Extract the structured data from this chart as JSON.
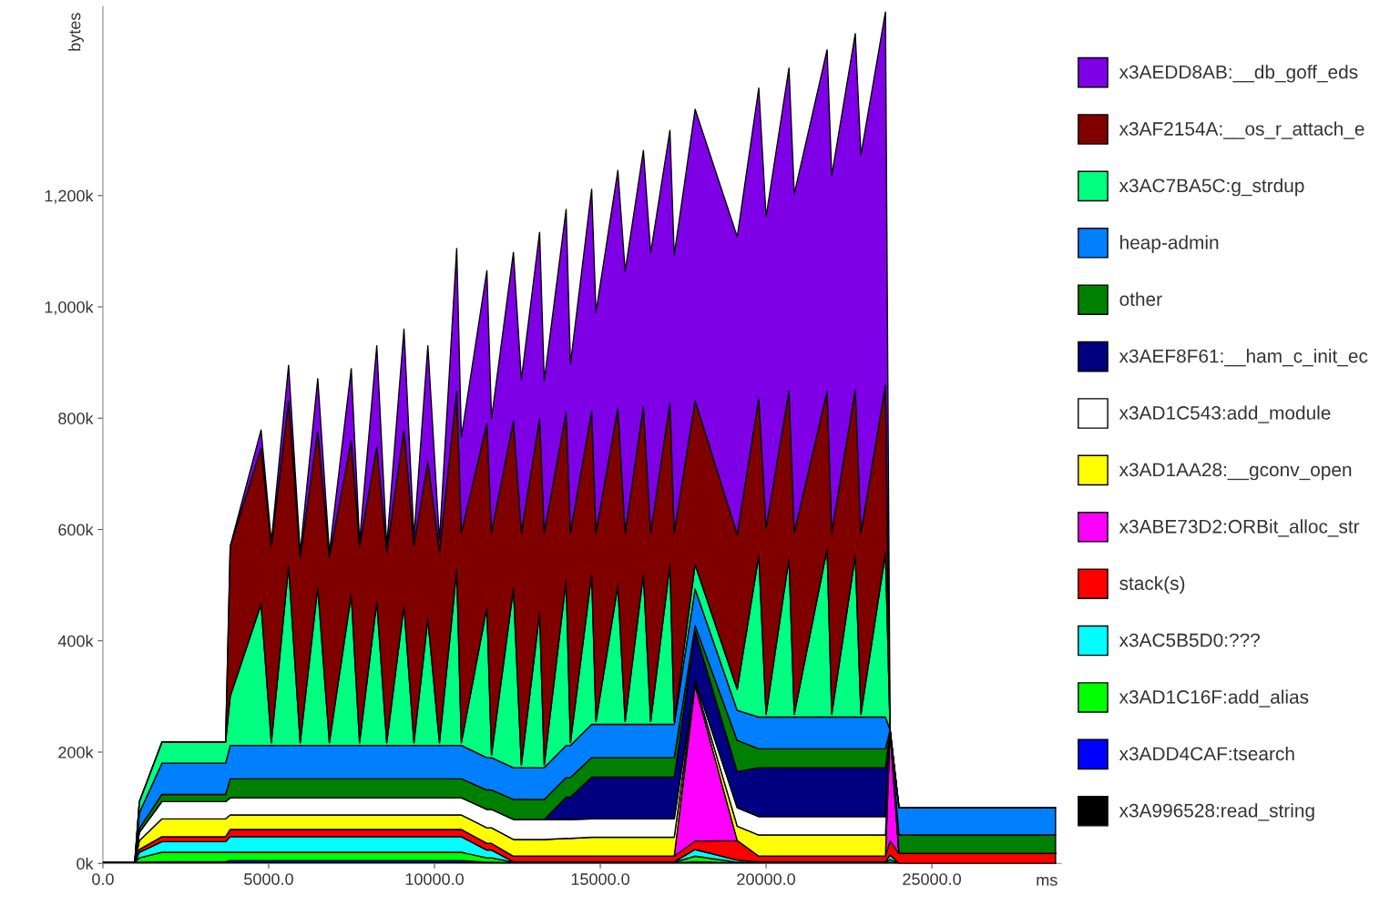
{
  "chart_data": {
    "type": "area",
    "stacked": true,
    "xlabel": "ms",
    "ylabel": "bytes",
    "x": [
      0,
      960,
      1100,
      1780,
      3700,
      3840,
      4770,
      5080,
      5600,
      5950,
      6480,
      6830,
      7490,
      7740,
      8260,
      8560,
      9080,
      9380,
      9800,
      10150,
      10670,
      10810,
      11580,
      11720,
      12380,
      12620,
      13170,
      13310,
      13970,
      14100,
      14740,
      14870,
      15530,
      15750,
      16300,
      16520,
      17100,
      17230,
      17860,
      19130,
      19780,
      20000,
      20690,
      20850,
      21840,
      21980,
      22690,
      22860,
      23600,
      23740,
      24010,
      28730
    ],
    "xlim": [
      0,
      28900
    ],
    "xticks": [
      {
        "value": 0,
        "label": "0.0"
      },
      {
        "value": 5000,
        "label": "5000.0"
      },
      {
        "value": 10000,
        "label": "10000.0"
      },
      {
        "value": 15000,
        "label": "15000.0"
      },
      {
        "value": 20000,
        "label": "20000.0"
      },
      {
        "value": 25000,
        "label": "25000.0"
      }
    ],
    "ylim": [
      0,
      1540
    ],
    "yticks": [
      {
        "value": 0,
        "label": "0k"
      },
      {
        "value": 200,
        "label": "200k"
      },
      {
        "value": 400,
        "label": "400k"
      },
      {
        "value": 600,
        "label": "600k"
      },
      {
        "value": 800,
        "label": "800k"
      },
      {
        "value": 1000,
        "label": "1,000k"
      },
      {
        "value": 1200,
        "label": "1,200k"
      }
    ],
    "legend": "right",
    "grid": false,
    "series": [
      {
        "name": "x3A996528:read_string",
        "color": "#000000",
        "values": [
          2,
          2,
          1,
          1,
          1,
          1,
          1,
          1,
          1,
          1,
          1,
          1,
          1,
          1,
          1,
          1,
          1,
          1,
          1,
          1,
          1,
          1,
          0,
          0,
          0,
          0,
          0,
          0,
          0,
          0,
          0,
          0,
          0,
          0,
          0,
          0,
          0,
          0,
          0,
          0,
          0,
          0,
          0,
          0,
          0,
          0,
          0,
          0,
          0,
          0,
          0,
          0
        ]
      },
      {
        "name": "x3ADD4CAF:tsearch",
        "color": "#0000ff",
        "values": [
          0,
          0,
          1,
          2,
          2,
          4,
          4,
          4,
          4,
          4,
          4,
          4,
          4,
          4,
          4,
          4,
          4,
          4,
          4,
          4,
          4,
          4,
          2,
          2,
          1,
          1,
          1,
          1,
          1,
          1,
          1,
          1,
          1,
          1,
          1,
          1,
          1,
          1,
          3,
          1,
          1,
          1,
          1,
          1,
          1,
          1,
          1,
          1,
          1,
          2,
          0,
          0
        ]
      },
      {
        "name": "x3AD1C16F:add_alias",
        "color": "#00ff00",
        "values": [
          0,
          0,
          8,
          17,
          17,
          15,
          15,
          15,
          15,
          15,
          15,
          15,
          15,
          15,
          15,
          15,
          15,
          15,
          15,
          15,
          15,
          15,
          8,
          8,
          1,
          1,
          1,
          1,
          1,
          1,
          1,
          1,
          1,
          1,
          1,
          1,
          1,
          1,
          10,
          1,
          1,
          1,
          1,
          1,
          1,
          1,
          1,
          1,
          1,
          5,
          0,
          0
        ]
      },
      {
        "name": "x3AC5B5D0:???",
        "color": "#00ffff",
        "values": [
          0,
          0,
          10,
          19,
          19,
          28,
          28,
          28,
          28,
          28,
          28,
          28,
          28,
          28,
          28,
          28,
          28,
          28,
          28,
          28,
          28,
          28,
          14,
          14,
          1,
          1,
          1,
          1,
          1,
          1,
          1,
          1,
          1,
          1,
          1,
          1,
          1,
          1,
          12,
          4,
          1,
          1,
          1,
          1,
          1,
          1,
          1,
          1,
          1,
          8,
          0,
          0
        ]
      },
      {
        "name": "stack(s)",
        "color": "#ff0000",
        "values": [
          0,
          0,
          5,
          9,
          9,
          13,
          13,
          13,
          13,
          13,
          13,
          13,
          13,
          13,
          13,
          13,
          13,
          13,
          13,
          13,
          13,
          13,
          12,
          12,
          10,
          10,
          10,
          10,
          10,
          10,
          10,
          10,
          10,
          10,
          10,
          10,
          10,
          10,
          15,
          35,
          10,
          10,
          10,
          10,
          10,
          10,
          10,
          10,
          10,
          25,
          18,
          18
        ]
      },
      {
        "name": "x3ABE73D2:ORBit_alloc_str",
        "color": "#ff00ff",
        "values": [
          0,
          0,
          0,
          0,
          0,
          0,
          0,
          0,
          0,
          0,
          0,
          0,
          0,
          0,
          0,
          0,
          0,
          0,
          0,
          0,
          0,
          0,
          0,
          0,
          0,
          0,
          0,
          0,
          0,
          0,
          0,
          0,
          0,
          0,
          0,
          0,
          0,
          0,
          280,
          0,
          0,
          0,
          0,
          0,
          0,
          0,
          0,
          0,
          0,
          200,
          0,
          0
        ]
      },
      {
        "name": "x3AD1AA28:__gconv_open",
        "color": "#ffff00",
        "values": [
          0,
          0,
          16,
          32,
          32,
          26,
          26,
          26,
          26,
          26,
          26,
          26,
          26,
          26,
          26,
          26,
          26,
          26,
          26,
          26,
          26,
          26,
          28,
          28,
          30,
          30,
          30,
          30,
          32,
          32,
          34,
          34,
          34,
          34,
          34,
          34,
          34,
          34,
          4,
          26,
          38,
          38,
          38,
          38,
          38,
          38,
          38,
          38,
          38,
          0,
          0,
          0
        ]
      },
      {
        "name": "x3AD1C543:add_module",
        "color": "#ffffff",
        "values": [
          0,
          0,
          15,
          31,
          31,
          31,
          31,
          31,
          31,
          31,
          31,
          31,
          31,
          31,
          31,
          31,
          31,
          31,
          31,
          31,
          31,
          31,
          33,
          33,
          36,
          36,
          36,
          36,
          34,
          34,
          33,
          33,
          33,
          33,
          33,
          33,
          33,
          33,
          5,
          33,
          33,
          33,
          33,
          33,
          33,
          33,
          33,
          33,
          33,
          0,
          0,
          0
        ]
      },
      {
        "name": "x3AEF8F61:__ham_c_init_ec",
        "color": "#000080",
        "values": [
          0,
          0,
          0,
          0,
          0,
          0,
          0,
          0,
          0,
          0,
          0,
          0,
          0,
          0,
          0,
          0,
          0,
          0,
          0,
          0,
          0,
          0,
          0,
          0,
          0,
          0,
          0,
          0,
          40,
          40,
          75,
          75,
          75,
          75,
          75,
          75,
          75,
          75,
          88,
          65,
          88,
          88,
          88,
          88,
          88,
          88,
          88,
          88,
          88,
          0,
          0,
          0
        ]
      },
      {
        "name": "other",
        "color": "#008000",
        "values": [
          0,
          0,
          7,
          13,
          13,
          34,
          34,
          34,
          34,
          34,
          34,
          34,
          34,
          34,
          34,
          34,
          34,
          34,
          34,
          34,
          34,
          34,
          35,
          35,
          36,
          36,
          36,
          36,
          35,
          35,
          35,
          35,
          35,
          35,
          35,
          35,
          35,
          35,
          10,
          56,
          34,
          34,
          34,
          34,
          34,
          34,
          34,
          34,
          34,
          0,
          33,
          33
        ]
      },
      {
        "name": "heap-admin",
        "color": "#0080ff",
        "values": [
          0,
          0,
          28,
          56,
          56,
          60,
          60,
          60,
          60,
          60,
          60,
          60,
          60,
          60,
          60,
          60,
          60,
          60,
          60,
          60,
          60,
          60,
          58,
          58,
          57,
          57,
          57,
          57,
          58,
          58,
          60,
          60,
          60,
          60,
          60,
          60,
          60,
          60,
          66,
          54,
          57,
          57,
          57,
          57,
          57,
          57,
          57,
          57,
          57,
          0,
          49,
          49
        ]
      },
      {
        "name": "x3AC7BA5C:g_strdup",
        "color": "#00ff80",
        "values": [
          0,
          0,
          20,
          38,
          38,
          88,
          254,
          5,
          322,
          5,
          284,
          5,
          271,
          5,
          258,
          5,
          251,
          5,
          227,
          5,
          315,
          5,
          270,
          5,
          322,
          5,
          278,
          5,
          297,
          5,
          270,
          5,
          249,
          5,
          270,
          5,
          287,
          5,
          44,
          38,
          290,
          5,
          285,
          5,
          302,
          5,
          290,
          5,
          295,
          0,
          0,
          0
        ]
      },
      {
        "name": "x3AF2154A:__os_r_attach_e",
        "color": "#800000",
        "values": [
          0,
          0,
          0,
          0,
          0,
          270,
          280,
          353,
          296,
          333,
          280,
          333,
          276,
          353,
          278,
          343,
          316,
          354,
          283,
          343,
          321,
          377,
          330,
          399,
          301,
          417,
          349,
          417,
          301,
          377,
          292,
          339,
          319,
          339,
          300,
          339,
          290,
          339,
          294,
          278,
          283,
          334,
          300,
          326,
          283,
          326,
          298,
          326,
          301,
          0,
          0,
          0
        ]
      },
      {
        "name": "x3AEDD8AB:__db_goff_eds",
        "color": "#7f00e6",
        "values": [
          0,
          0,
          0,
          0,
          0,
          0,
          33,
          8,
          65,
          8,
          95,
          8,
          130,
          8,
          182,
          10,
          181,
          15,
          208,
          20,
          257,
          172,
          275,
          205,
          303,
          275,
          335,
          273,
          365,
          303,
          399,
          396,
          427,
          470,
          461,
          503,
          490,
          499,
          524,
          535,
          557,
          560,
          581,
          609,
          614,
          642,
          640,
          679,
          671,
          0,
          0,
          0
        ]
      }
    ]
  }
}
